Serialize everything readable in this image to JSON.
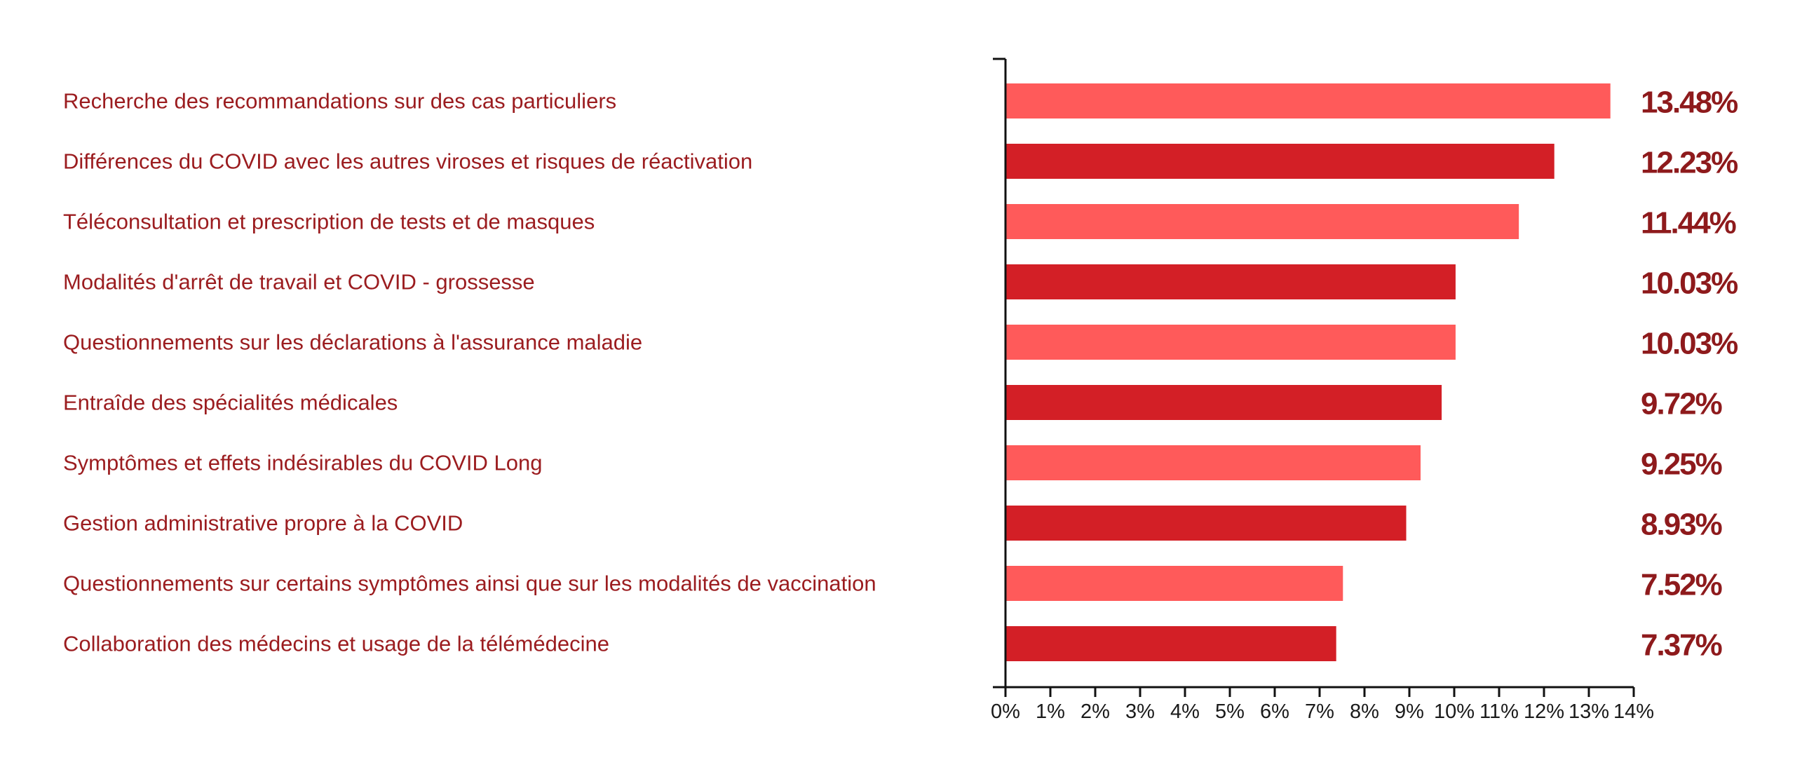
{
  "chart_data": {
    "type": "bar",
    "orientation": "horizontal",
    "title": "",
    "xlabel": "",
    "ylabel": "",
    "xlim": [
      0,
      14
    ],
    "tick_step": 1,
    "tick_suffix": "%",
    "grid": false,
    "legend": "none",
    "colors": [
      "#ff5a5a",
      "#d31f26"
    ],
    "categories": [
      "Recherche des recommandations sur des cas particuliers",
      "Différences du COVID avec les autres viroses et risques de réactivation",
      "Téléconsultation et prescription de tests et de masques",
      "Modalités d'arrêt de travail et COVID - grossesse",
      "Questionnements sur les déclarations à l'assurance maladie",
      "Entraîde des spécialités médicales",
      "Symptômes et effets indésirables du COVID Long",
      "Gestion administrative propre à la COVID",
      "Questionnements sur certains symptômes ainsi que sur les modalités de vaccination",
      "Collaboration des médecins et usage de la télémédecine"
    ],
    "values": [
      13.48,
      12.23,
      11.44,
      10.03,
      10.03,
      9.72,
      9.25,
      8.93,
      7.52,
      7.37
    ],
    "value_labels": [
      "13.48%",
      "12.23%",
      "11.44%",
      "10.03%",
      "10.03%",
      "9.72%",
      "9.25%",
      "8.93%",
      "7.52%",
      "7.37%"
    ],
    "ticks": [
      "0%",
      "1%",
      "2%",
      "3%",
      "4%",
      "5%",
      "6%",
      "7%",
      "8%",
      "9%",
      "10%",
      "11%",
      "12%",
      "13%",
      "14%"
    ]
  }
}
